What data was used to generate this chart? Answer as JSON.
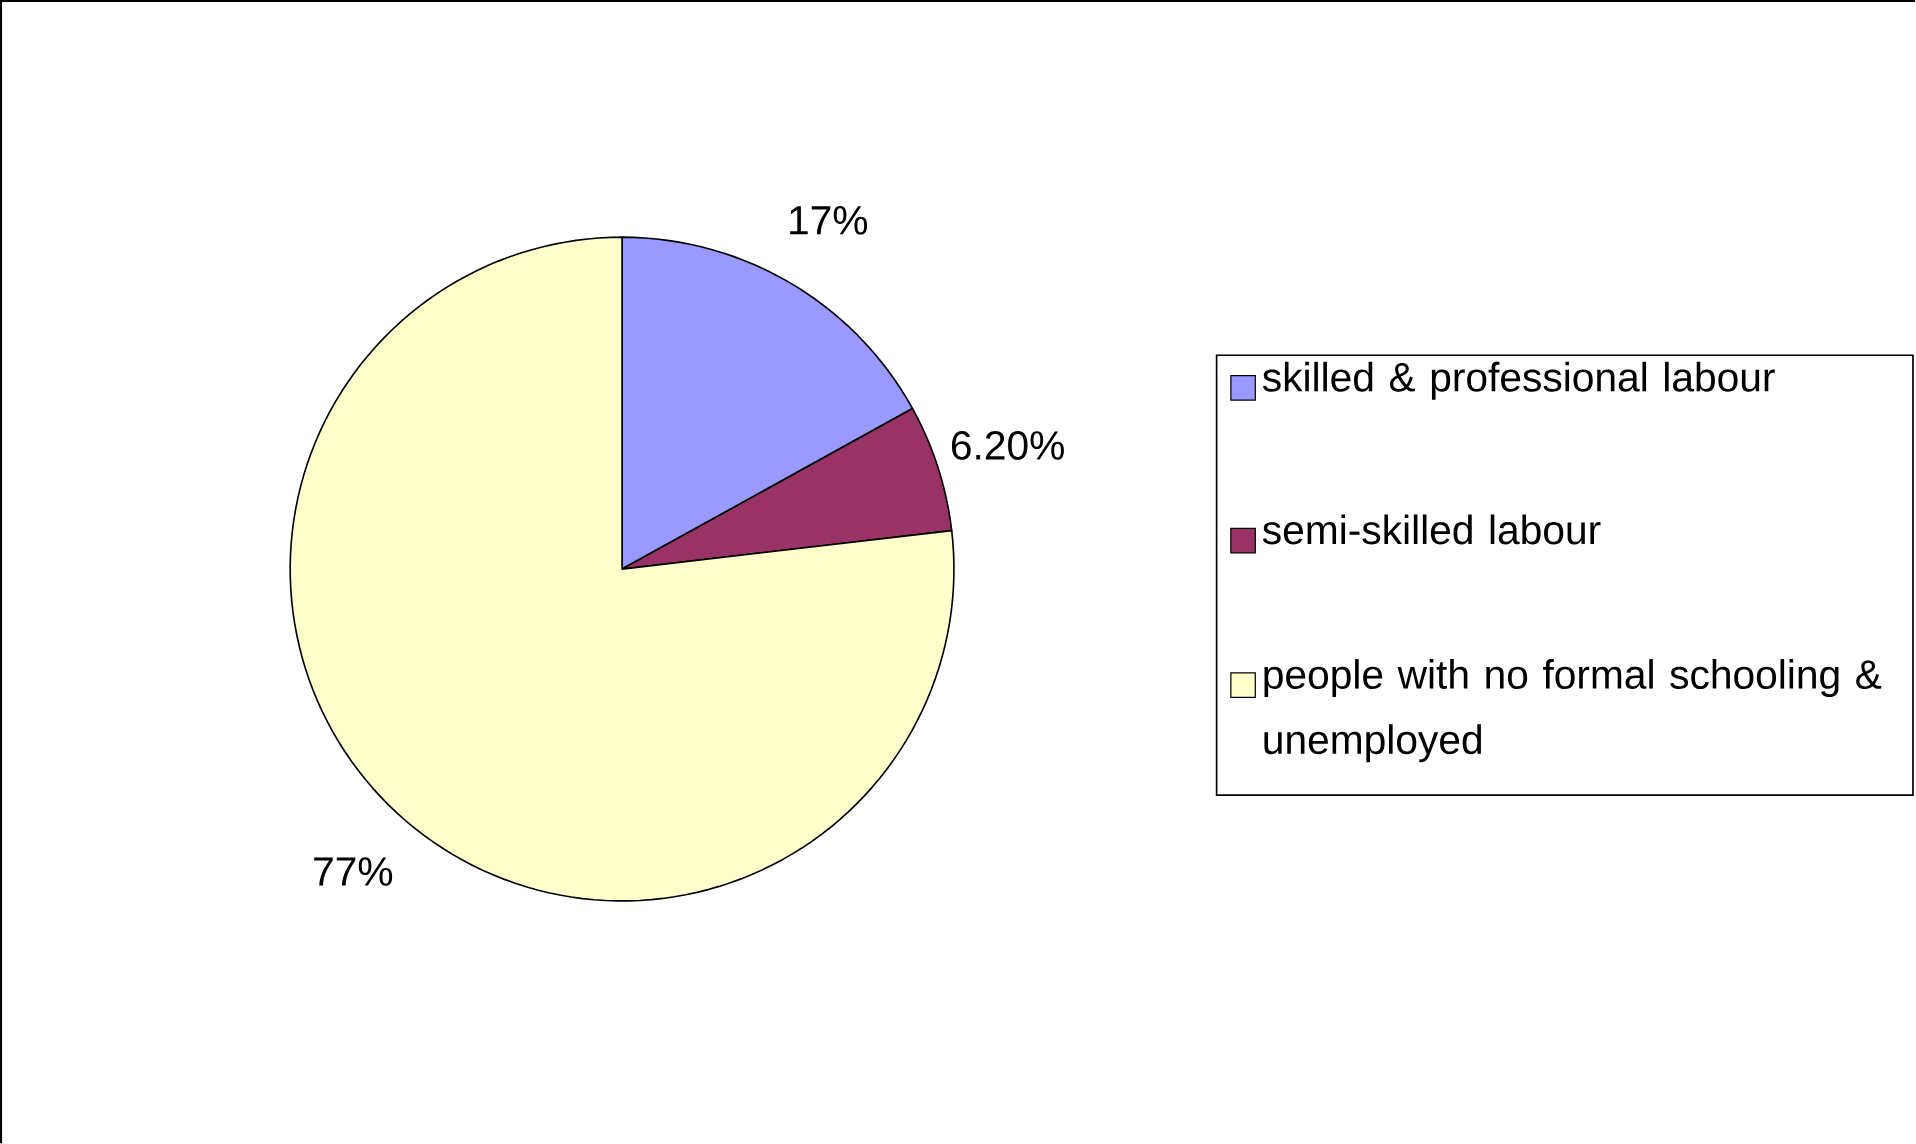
{
  "chart_data": {
    "type": "pie",
    "categories": [
      "skilled & professional labour",
      "semi-skilled labour",
      "people with no formal schooling & unemployed"
    ],
    "values": [
      17,
      6.2,
      77
    ],
    "value_labels": [
      "17%",
      "6.20%",
      "77%"
    ],
    "colors": [
      "#9999ff",
      "#993366",
      "#ffffcc"
    ],
    "legend": "right"
  }
}
